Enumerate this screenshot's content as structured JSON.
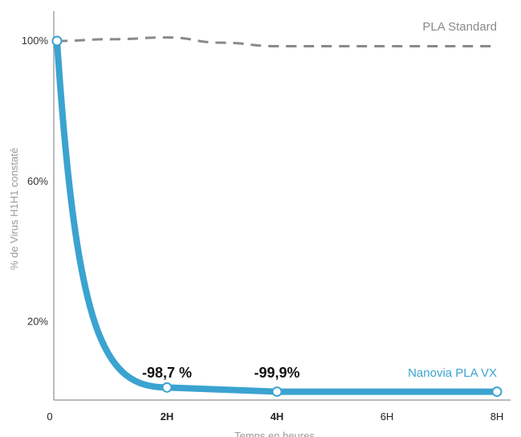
{
  "chart_data": {
    "type": "line",
    "xlabel": "Temps en heures",
    "ylabel": "% de Virus H1H1 constaté",
    "x_ticks": [
      {
        "value": 0,
        "label": "0",
        "bold": false
      },
      {
        "value": 2,
        "label": "2H",
        "bold": true
      },
      {
        "value": 4,
        "label": "4H",
        "bold": true
      },
      {
        "value": 6,
        "label": "6H",
        "bold": false
      },
      {
        "value": 8,
        "label": "8H",
        "bold": false
      }
    ],
    "y_ticks": [
      {
        "value": 100,
        "label": "100%"
      },
      {
        "value": 60,
        "label": "60%"
      },
      {
        "value": 20,
        "label": "20%"
      }
    ],
    "xlim": [
      0,
      8
    ],
    "ylim": [
      0,
      100
    ],
    "grid": false,
    "series": [
      {
        "name": "PLA Standard",
        "color": "#8a8a8a",
        "style": "dashed",
        "x": [
          0,
          1,
          2,
          3,
          4,
          5,
          6,
          7,
          8
        ],
        "y": [
          100,
          100.5,
          101,
          99.5,
          98.5,
          98.5,
          98.5,
          98.5,
          98.5
        ]
      },
      {
        "name": "Nanovia PLA VX",
        "color": "#3ba3d0",
        "style": "solid",
        "x": [
          0,
          2,
          4,
          8
        ],
        "y": [
          100,
          1.3,
          0.1,
          0.1
        ],
        "markers_x": [
          0,
          2,
          4,
          8
        ]
      }
    ],
    "annotations": [
      {
        "x": 2,
        "text": "-98,7 %"
      },
      {
        "x": 4,
        "text": "-99,9%"
      }
    ]
  }
}
